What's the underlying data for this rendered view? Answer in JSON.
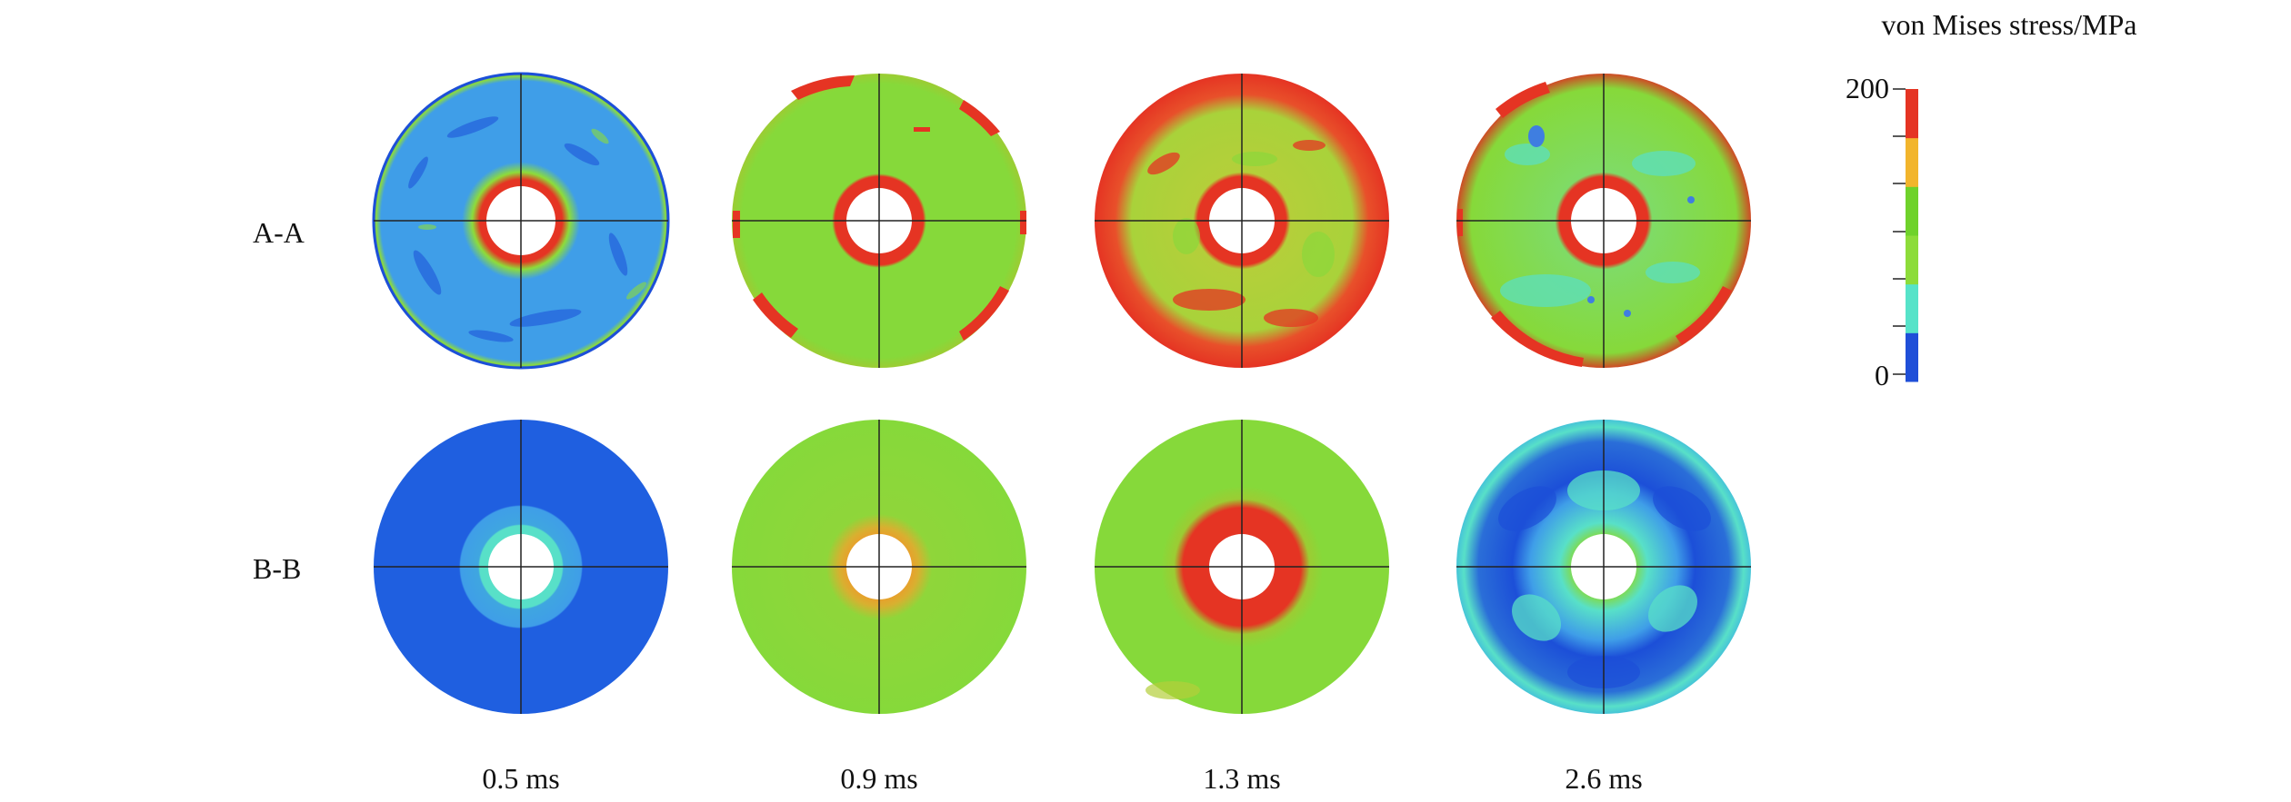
{
  "legend": {
    "title": "von Mises stress/MPa",
    "max_label": "200",
    "min_label": "0",
    "max_value": 200,
    "min_value": 0,
    "bands": [
      "#1f4fd8",
      "#56e3c9",
      "#8ddc3a",
      "#6fd22b",
      "#f2b52c",
      "#e53423"
    ]
  },
  "rows": [
    "A-A",
    "B-B"
  ],
  "times": [
    "0.5 ms",
    "0.9 ms",
    "1.3 ms",
    "2.6 ms"
  ],
  "colors": {
    "blue": "#1f6fe0",
    "deep_blue": "#1c4fd8",
    "light_blue": "#3f9ee8",
    "cyan": "#58e0c8",
    "green": "#86d93a",
    "yellow_green": "#b4cf3a",
    "orange": "#ee9a2a",
    "red": "#e53423"
  }
}
